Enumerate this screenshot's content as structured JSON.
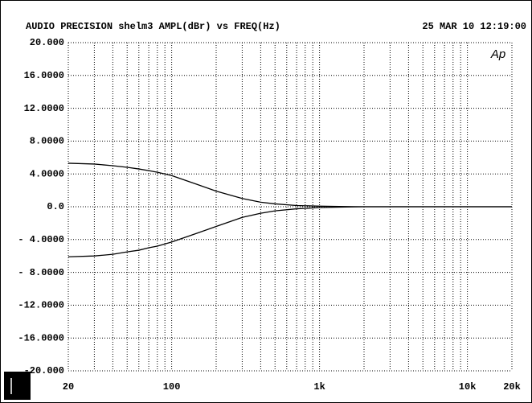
{
  "chart_data": {
    "type": "line",
    "title": "AUDIO PRECISION shelm3 AMPL(dBr) vs FREQ(Hz)",
    "timestamp": "25 MAR 10 12:19:00",
    "logo": "Ap",
    "xscale": "log",
    "xlim": [
      20,
      20000
    ],
    "ylim": [
      -20,
      20
    ],
    "xticks": [
      20,
      100,
      {
        "value": 1000,
        "label": "1k"
      },
      {
        "value": 10000,
        "label": "10k"
      },
      {
        "value": 20000,
        "label": "20k"
      }
    ],
    "xminor": [
      30,
      40,
      50,
      60,
      70,
      80,
      90,
      200,
      300,
      400,
      500,
      600,
      700,
      800,
      900,
      2000,
      3000,
      4000,
      5000,
      6000,
      7000,
      8000,
      9000
    ],
    "yticks": [
      {
        "value": 20,
        "label": "20.000"
      },
      {
        "value": 16,
        "label": "16.0000"
      },
      {
        "value": 12,
        "label": "12.0000"
      },
      {
        "value": 8,
        "label": "8.0000"
      },
      {
        "value": 4,
        "label": "4.0000"
      },
      {
        "value": 0,
        "label": "0.0"
      },
      {
        "value": -4,
        "label": "- 4.0000"
      },
      {
        "value": -8,
        "label": "- 8.0000"
      },
      {
        "value": -12,
        "label": "-12.0000"
      },
      {
        "value": -16,
        "label": "-16.0000"
      },
      {
        "value": -20,
        "label": "-20.000"
      }
    ],
    "grid": true,
    "x": [
      20,
      30,
      40,
      50,
      60,
      70,
      80,
      100,
      150,
      200,
      300,
      400,
      500,
      700,
      1000,
      1500,
      2000,
      5000,
      20000
    ],
    "series": [
      {
        "color": "#000000",
        "values": [
          5.3,
          5.2,
          5.0,
          4.8,
          4.6,
          4.4,
          4.2,
          3.8,
          2.7,
          1.9,
          1.0,
          0.55,
          0.35,
          0.15,
          0.07,
          0.02,
          0,
          0,
          0
        ]
      },
      {
        "color": "#000000",
        "values": [
          -6.1,
          -6.0,
          -5.8,
          -5.5,
          -5.3,
          -5.0,
          -4.8,
          -4.3,
          -3.2,
          -2.4,
          -1.3,
          -0.8,
          -0.5,
          -0.25,
          -0.1,
          -0.03,
          0,
          0,
          0
        ]
      }
    ]
  }
}
